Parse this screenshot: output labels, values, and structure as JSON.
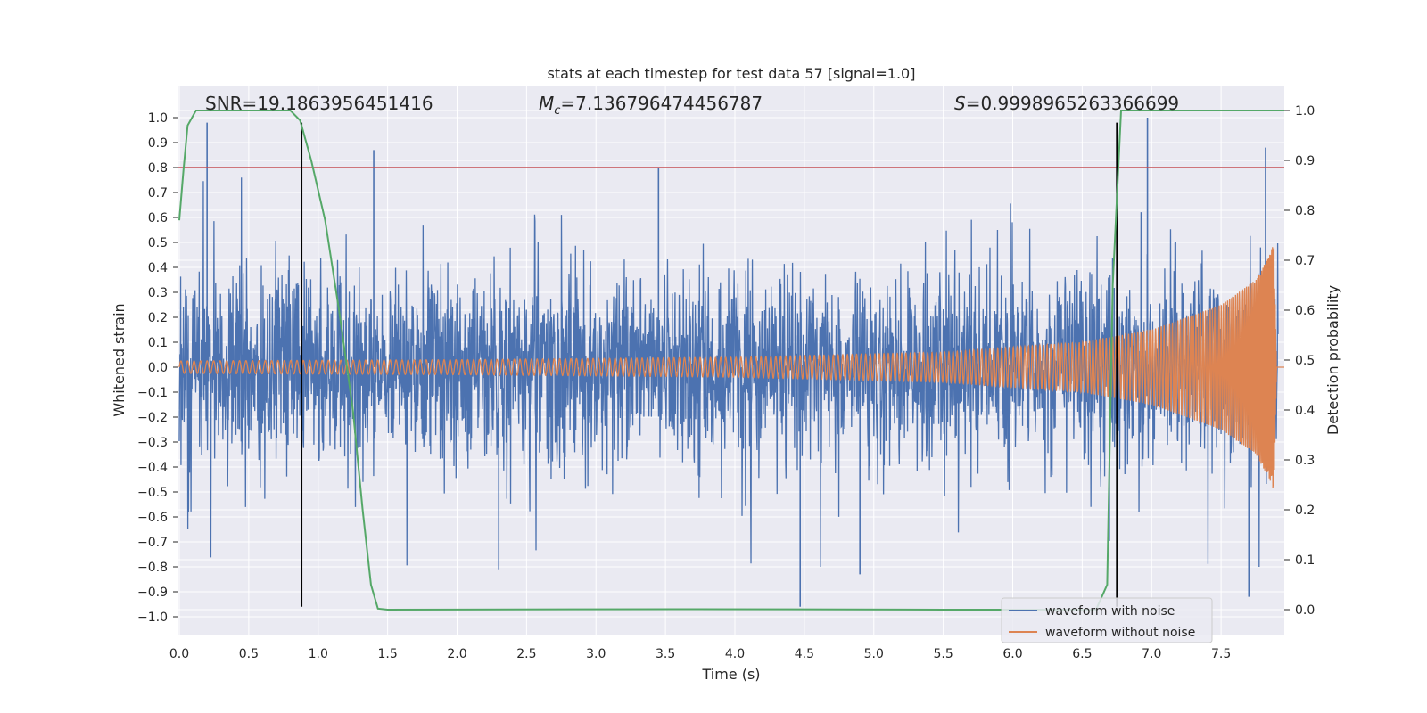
{
  "chart_data": {
    "type": "line",
    "title": "stats at each timestep for test data 57 [signal=1.0]",
    "xlabel": "Time (s)",
    "ylabel": "Whitened strain",
    "y2label": "Detection probability",
    "xlim": [
      0.0,
      8.0
    ],
    "ylim": [
      -1.05,
      1.05
    ],
    "y2lim": [
      -0.045,
      1.045
    ],
    "x_ticks": [
      0.0,
      0.5,
      1.0,
      1.5,
      2.0,
      2.5,
      3.0,
      3.5,
      4.0,
      4.5,
      5.0,
      5.5,
      6.0,
      6.5,
      7.0,
      7.5
    ],
    "y_ticks": [
      -1.0,
      -0.9,
      -0.8,
      -0.7,
      -0.6,
      -0.5,
      -0.4,
      -0.3,
      -0.2,
      -0.1,
      0.0,
      0.1,
      0.2,
      0.3,
      0.4,
      0.5,
      0.6,
      0.7,
      0.8,
      0.9,
      1.0
    ],
    "y2_ticks": [
      0.0,
      0.1,
      0.2,
      0.3,
      0.4,
      0.5,
      0.6,
      0.7,
      0.8,
      0.9,
      1.0
    ],
    "grid": true,
    "background": "#eaeaf2",
    "annotations": {
      "snr_label": "SNR=19.1863956451416",
      "mc_symbol": "M",
      "mc_sub": "c",
      "mc_value": "=7.136796474456787",
      "s_symbol": "S",
      "s_value": "=0.9998965263366699"
    },
    "legend": {
      "location": "lower-right",
      "entries": [
        "waveform with noise",
        "waveform without noise"
      ]
    },
    "series": [
      {
        "name": "waveform with noise",
        "axis": "left",
        "color": "#4c72b0",
        "description": "whitened noisy strain, spiky envelope roughly ±0.4 with peaks to ±1.0",
        "x_range": [
          0.0,
          7.91
        ],
        "envelope_peaks": [
          {
            "x": 0.2,
            "y": 0.98
          },
          {
            "x": 1.4,
            "y": 0.87
          },
          {
            "x": 3.45,
            "y": 0.8
          },
          {
            "x": 6.97,
            "y": 1.0
          },
          {
            "x": 7.82,
            "y": 0.88
          },
          {
            "x": 4.47,
            "y": -0.96
          },
          {
            "x": 7.7,
            "y": -0.92
          },
          {
            "x": 4.9,
            "y": -0.83
          },
          {
            "x": 2.3,
            "y": -0.81
          }
        ]
      },
      {
        "name": "waveform without noise",
        "axis": "left",
        "color": "#dd8452",
        "description": "chirp signal, amplitude grows from ~0.03 to ~0.5 then drops to 0 at merger",
        "x_range": [
          0.0,
          7.91
        ],
        "amplitude": [
          {
            "x": 0.0,
            "y": 0.025
          },
          {
            "x": 2.0,
            "y": 0.03
          },
          {
            "x": 4.0,
            "y": 0.04
          },
          {
            "x": 5.5,
            "y": 0.06
          },
          {
            "x": 6.5,
            "y": 0.1
          },
          {
            "x": 7.0,
            "y": 0.15
          },
          {
            "x": 7.5,
            "y": 0.25
          },
          {
            "x": 7.75,
            "y": 0.35
          },
          {
            "x": 7.85,
            "y": 0.45
          },
          {
            "x": 7.88,
            "y": 0.5
          },
          {
            "x": 7.9,
            "y": 0.0
          }
        ]
      },
      {
        "name": "detection probability",
        "axis": "right",
        "color": "#55a868",
        "points": [
          [
            0.0,
            0.78
          ],
          [
            0.03,
            0.88
          ],
          [
            0.06,
            0.97
          ],
          [
            0.12,
            1.0
          ],
          [
            0.5,
            1.0
          ],
          [
            0.8,
            1.0
          ],
          [
            0.87,
            0.98
          ],
          [
            0.95,
            0.9
          ],
          [
            1.05,
            0.78
          ],
          [
            1.15,
            0.6
          ],
          [
            1.25,
            0.4
          ],
          [
            1.32,
            0.2
          ],
          [
            1.38,
            0.05
          ],
          [
            1.43,
            0.002
          ],
          [
            1.5,
            0.0
          ],
          [
            3.7,
            0.001
          ],
          [
            5.5,
            0.0
          ],
          [
            6.6,
            0.0
          ],
          [
            6.68,
            0.05
          ],
          [
            6.72,
            0.65
          ],
          [
            6.78,
            1.0
          ],
          [
            7.0,
            1.0
          ],
          [
            8.0,
            1.0
          ]
        ]
      }
    ],
    "threshold_line": {
      "axis": "left",
      "y": 0.8,
      "color": "#c44e52"
    },
    "vertical_lines": [
      {
        "x": 0.88,
        "color": "#000000",
        "y_range": [
          -0.96,
          0.98
        ]
      },
      {
        "x": 6.75,
        "color": "#000000",
        "y_range": [
          -0.96,
          0.98
        ]
      }
    ]
  }
}
